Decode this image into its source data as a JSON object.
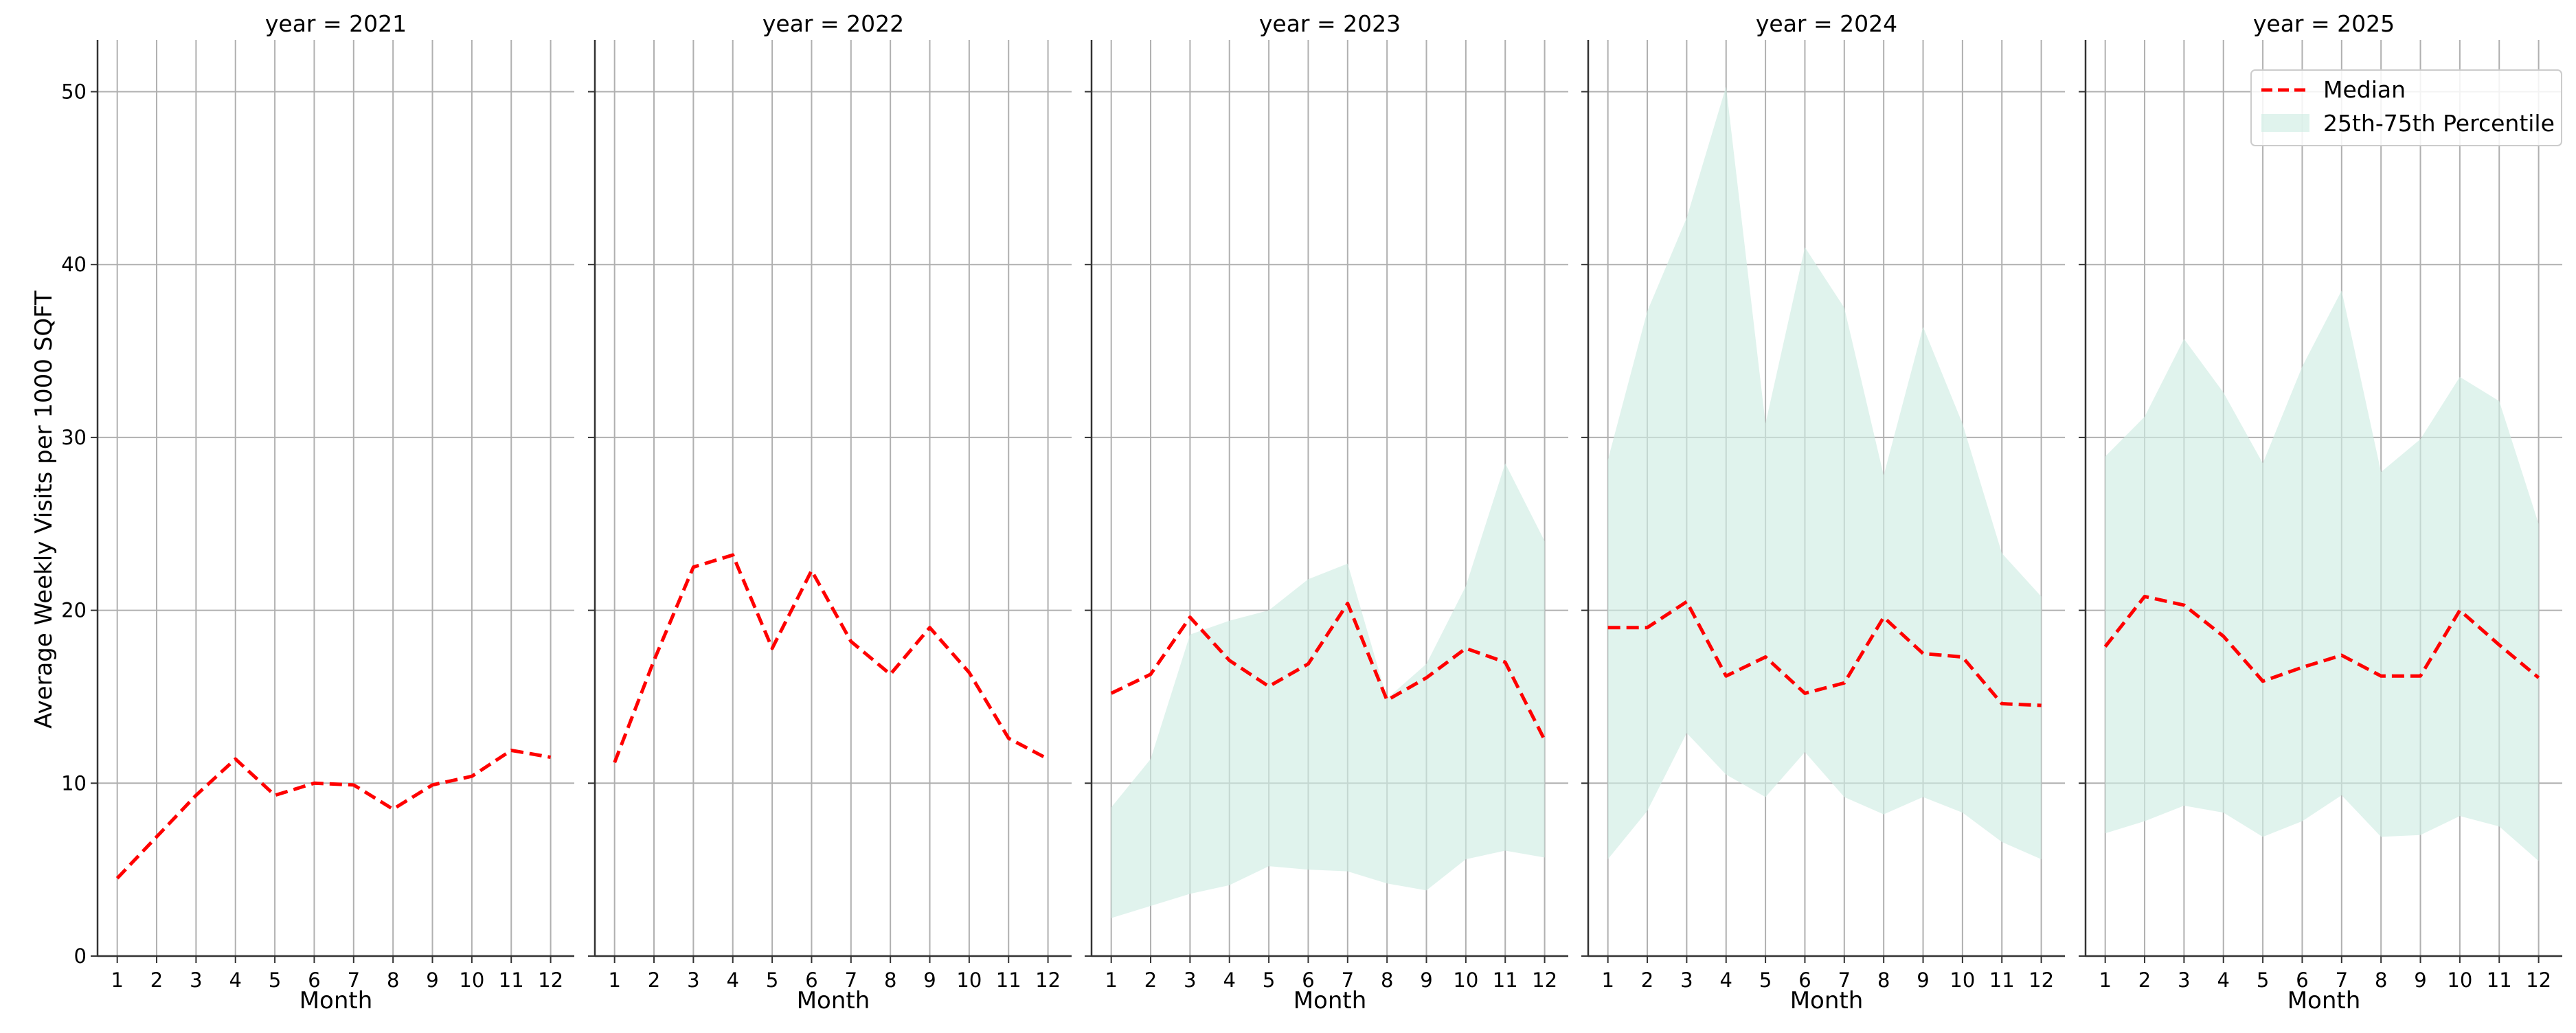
{
  "chart_data": {
    "type": "line",
    "ylabel": "Average Weekly Visits per 1000 SQFT",
    "xlabel": "Month",
    "x": [
      1,
      2,
      3,
      4,
      5,
      6,
      7,
      8,
      9,
      10,
      11,
      12
    ],
    "x_ticks": [
      "1",
      "2",
      "3",
      "4",
      "5",
      "6",
      "7",
      "8",
      "9",
      "10",
      "11",
      "12"
    ],
    "y_ticks": [
      "0",
      "10",
      "20",
      "30",
      "40",
      "50"
    ],
    "ylim": [
      0,
      53
    ],
    "xlim": [
      0.5,
      12.6
    ],
    "grid": true,
    "legend": {
      "placement": "top-right",
      "entries": [
        "Median",
        "25th-75th Percentile"
      ]
    },
    "colors": {
      "median": "#ff0000",
      "band": "#cfece3",
      "grid": "#b0b0b0",
      "axis": "#333333"
    },
    "panels": [
      {
        "title": "year = 2021",
        "median": [
          4.5,
          6.9,
          9.3,
          11.4,
          9.3,
          10.0,
          9.9,
          8.5,
          9.9,
          10.4,
          11.9,
          11.5
        ],
        "p25": null,
        "p75": null
      },
      {
        "title": "year = 2022",
        "median": [
          11.2,
          17.1,
          22.5,
          23.2,
          17.8,
          22.3,
          18.2,
          16.3,
          19.0,
          16.4,
          12.6,
          11.4
        ],
        "p25": null,
        "p75": null
      },
      {
        "title": "year = 2023",
        "median": [
          15.2,
          16.3,
          19.6,
          17.1,
          15.6,
          16.9,
          20.4,
          14.8,
          16.1,
          17.8,
          17.0,
          12.5
        ],
        "p25": [
          2.2,
          2.9,
          3.6,
          4.1,
          5.2,
          5.0,
          4.9,
          4.2,
          3.8,
          5.6,
          6.1,
          5.7
        ],
        "p75": [
          8.6,
          11.4,
          18.6,
          19.4,
          20.0,
          21.8,
          22.7,
          14.9,
          16.9,
          21.4,
          28.5,
          24.0
        ]
      },
      {
        "title": "year = 2024",
        "median": [
          19.0,
          19.0,
          20.5,
          16.2,
          17.3,
          15.2,
          15.8,
          19.6,
          17.5,
          17.3,
          14.6,
          14.5
        ],
        "p25": [
          5.6,
          8.4,
          12.9,
          10.5,
          9.2,
          11.8,
          9.2,
          8.2,
          9.2,
          8.3,
          6.6,
          5.6
        ],
        "p75": [
          28.7,
          37.3,
          42.7,
          50.3,
          30.8,
          41.0,
          37.5,
          27.8,
          36.4,
          30.8,
          23.3,
          20.8
        ]
      },
      {
        "title": "year = 2025",
        "median": [
          17.9,
          20.8,
          20.3,
          18.5,
          15.9,
          16.7,
          17.4,
          16.2,
          16.2,
          20.0,
          18.0,
          16.1
        ],
        "p25": [
          7.1,
          7.8,
          8.7,
          8.3,
          6.9,
          7.8,
          9.3,
          6.9,
          7.0,
          8.1,
          7.5,
          5.5
        ],
        "p75": [
          28.9,
          31.2,
          35.7,
          32.6,
          28.5,
          34.1,
          38.5,
          28.0,
          29.9,
          33.5,
          32.1,
          25.0
        ]
      }
    ]
  }
}
